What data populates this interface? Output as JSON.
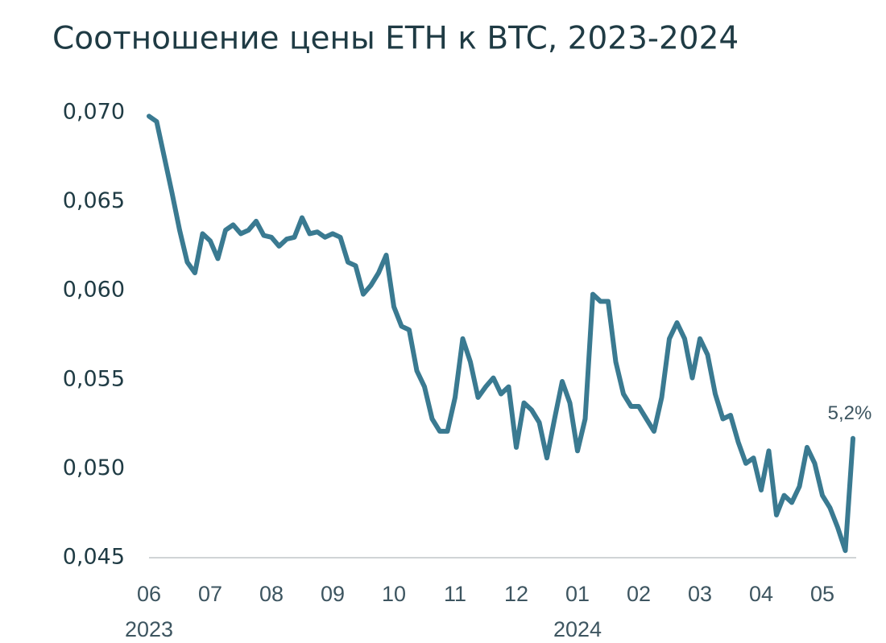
{
  "chart_data": {
    "type": "line",
    "title": "Соотношение цены ETH к BTC, 2023-2024",
    "annotation": "5,2%",
    "categories": [
      "06",
      null,
      null,
      null,
      null,
      null,
      null,
      null,
      "07",
      null,
      null,
      null,
      null,
      null,
      null,
      null,
      "08",
      null,
      null,
      null,
      null,
      null,
      null,
      null,
      "09",
      null,
      null,
      null,
      null,
      null,
      null,
      null,
      "10",
      null,
      null,
      null,
      null,
      null,
      null,
      null,
      "11",
      null,
      null,
      null,
      null,
      null,
      null,
      null,
      "12",
      null,
      null,
      null,
      null,
      null,
      null,
      null,
      "01",
      null,
      null,
      null,
      null,
      null,
      null,
      null,
      "02",
      null,
      null,
      null,
      null,
      null,
      null,
      null,
      "03",
      null,
      null,
      null,
      null,
      null,
      null,
      null,
      "04",
      null,
      null,
      null,
      null,
      null,
      null,
      null,
      "05",
      null,
      null,
      null,
      null
    ],
    "x_years": [
      "2023",
      null,
      null,
      null,
      null,
      null,
      null,
      null,
      null,
      null,
      null,
      null,
      null,
      null,
      null,
      null,
      null,
      null,
      null,
      null,
      null,
      null,
      null,
      null,
      null,
      null,
      null,
      null,
      null,
      null,
      null,
      null,
      null,
      null,
      null,
      null,
      null,
      null,
      null,
      null,
      null,
      null,
      null,
      null,
      null,
      null,
      null,
      null,
      null,
      null,
      null,
      null,
      null,
      null,
      null,
      null,
      "2024",
      null,
      null,
      null,
      null,
      null,
      null,
      null,
      null,
      null,
      null,
      null,
      null,
      null,
      null,
      null,
      null,
      null,
      null,
      null,
      null,
      null,
      null,
      null,
      null,
      null,
      null,
      null,
      null,
      null,
      null,
      null,
      null,
      null,
      null,
      null,
      null
    ],
    "series": [
      {
        "name": "ETH/BTC",
        "color": "#3a7a91",
        "values": [
          0.0698,
          0.0695,
          0.0675,
          0.0655,
          0.0634,
          0.0616,
          0.061,
          0.0632,
          0.0628,
          0.0618,
          0.0634,
          0.0637,
          0.0632,
          0.0634,
          0.0639,
          0.0631,
          0.063,
          0.0625,
          0.0629,
          0.063,
          0.0641,
          0.0632,
          0.0633,
          0.063,
          0.0632,
          0.063,
          0.0616,
          0.0614,
          0.0598,
          0.0603,
          0.061,
          0.062,
          0.0591,
          0.058,
          0.0578,
          0.0555,
          0.0546,
          0.0528,
          0.0521,
          0.0521,
          0.054,
          0.0573,
          0.056,
          0.054,
          0.0546,
          0.0551,
          0.0542,
          0.0546,
          0.0512,
          0.0537,
          0.0533,
          0.0526,
          0.0506,
          0.0528,
          0.0549,
          0.0537,
          0.051,
          0.0528,
          0.0598,
          0.0594,
          0.0594,
          0.056,
          0.0542,
          0.0535,
          0.0535,
          0.0528,
          0.0521,
          0.054,
          0.0573,
          0.0582,
          0.0573,
          0.0551,
          0.0573,
          0.0564,
          0.0542,
          0.0528,
          0.053,
          0.0515,
          0.0503,
          0.0506,
          0.0488,
          0.051,
          0.0474,
          0.0485,
          0.0481,
          0.049,
          0.0512,
          0.0503,
          0.0485,
          0.0478,
          0.0467,
          0.0454,
          0.0517
        ]
      }
    ],
    "ylim": [
      0.045,
      0.07
    ],
    "yticks": [
      {
        "value": 0.045,
        "label": "0,045"
      },
      {
        "value": 0.05,
        "label": "0,050"
      },
      {
        "value": 0.055,
        "label": "0,055"
      },
      {
        "value": 0.06,
        "label": "0,060"
      },
      {
        "value": 0.065,
        "label": "0,065"
      },
      {
        "value": 0.07,
        "label": "0,070"
      }
    ],
    "grid": false
  }
}
